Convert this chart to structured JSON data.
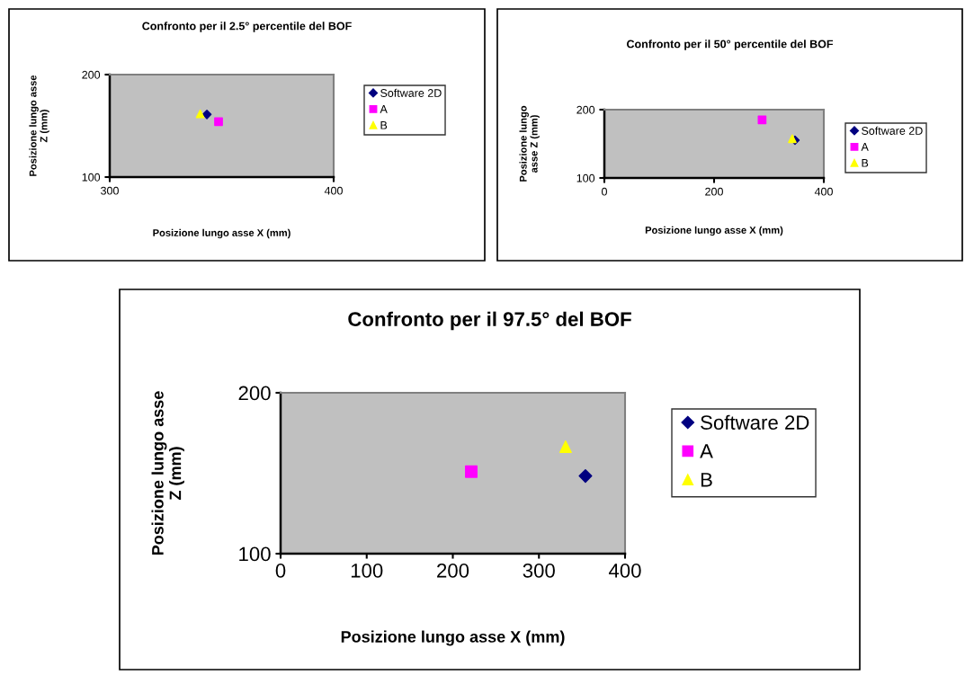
{
  "chart_data": [
    {
      "type": "scatter",
      "title": "Confronto per il 2.5° percentile del BOF",
      "xlabel": "Posizione lungo asse X (mm)",
      "ylabel": "Posizione lungo asse\nZ (mm)",
      "xlim": [
        300,
        400
      ],
      "ylim": [
        100,
        200
      ],
      "xticks": [
        300,
        400
      ],
      "yticks": [
        100,
        200
      ],
      "grid": false,
      "legend": "right",
      "series": [
        {
          "name": "Software 2D",
          "color": "#000080",
          "marker": "diamond",
          "x": [
            343.4
          ],
          "values": [
            161.1
          ]
        },
        {
          "name": "A",
          "color": "#ff00ff",
          "marker": "square",
          "x": [
            348.6
          ],
          "values": [
            154.1
          ]
        },
        {
          "name": "B",
          "color": "#ffff00",
          "marker": "triangle",
          "x": [
            340.4
          ],
          "values": [
            161.7
          ]
        }
      ]
    },
    {
      "type": "scatter",
      "title": "Confronto per il 50° percentile del BOF",
      "xlabel": "Posizione lungo asse X (mm)",
      "ylabel": "Posizione lungo\nasse Z (mm)",
      "xlim": [
        0,
        400
      ],
      "ylim": [
        100,
        200
      ],
      "xticks": [
        0,
        200,
        400
      ],
      "yticks": [
        100,
        200
      ],
      "grid": false,
      "legend": "right",
      "series": [
        {
          "name": "Software 2D",
          "color": "#000080",
          "marker": "diamond",
          "x": [
            347.5
          ],
          "values": [
            155.3
          ]
        },
        {
          "name": "A",
          "color": "#ff00ff",
          "marker": "square",
          "x": [
            287.5
          ],
          "values": [
            185.0
          ]
        },
        {
          "name": "B",
          "color": "#ffff00",
          "marker": "triangle",
          "x": [
            342.6
          ],
          "values": [
            157.5
          ]
        }
      ]
    },
    {
      "type": "scatter",
      "title": "Confronto per il 97.5° del BOF",
      "xlabel": "Posizione lungo asse X (mm)",
      "ylabel": "Posizione lungo asse\nZ (mm)",
      "xlim": [
        0,
        400
      ],
      "ylim": [
        100,
        200
      ],
      "xticks": [
        0,
        100,
        200,
        300,
        400
      ],
      "yticks": [
        100,
        200
      ],
      "grid": false,
      "legend": "right",
      "series": [
        {
          "name": "Software 2D",
          "color": "#000080",
          "marker": "diamond",
          "x": [
            354.0
          ],
          "values": [
            148.3
          ]
        },
        {
          "name": "A",
          "color": "#ff00ff",
          "marker": "square",
          "x": [
            221.4
          ],
          "values": [
            151.0
          ]
        },
        {
          "name": "B",
          "color": "#ffff00",
          "marker": "triangle",
          "x": [
            331.0
          ],
          "values": [
            166.5
          ]
        }
      ]
    }
  ]
}
